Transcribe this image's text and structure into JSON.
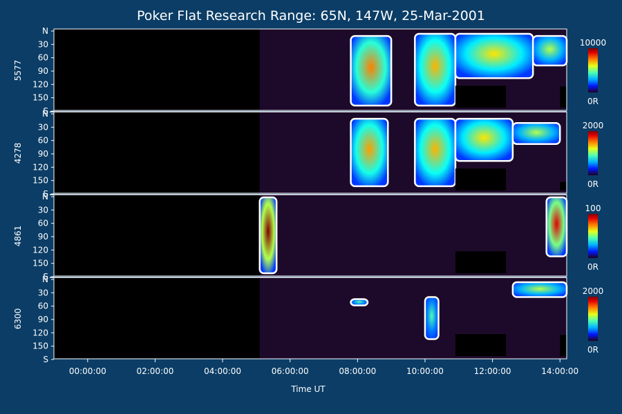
{
  "chart_data": {
    "type": "heatmap",
    "title": "Poker Flat Research Range: 65N, 147W, 25-Mar-2001",
    "xlabel": "Time UT",
    "x_ticks": [
      "00:00:00",
      "02:00:00",
      "04:00:00",
      "06:00:00",
      "08:00:00",
      "10:00:00",
      "12:00:00",
      "14:00:00"
    ],
    "x_tick_hours": [
      0,
      2,
      4,
      6,
      8,
      10,
      12,
      14
    ],
    "xlim_hours": [
      -1.0,
      14.2
    ],
    "y_ticks": [
      "N",
      "30",
      "60",
      "90",
      "120",
      "150",
      "S"
    ],
    "y_tick_values": [
      0,
      30,
      60,
      90,
      120,
      150,
      180
    ],
    "ylim": [
      0,
      180
    ],
    "colorscale_unit": "0R",
    "panels": [
      {
        "name": "5577",
        "cbar_max": "10000",
        "data_start_hour": 5.1,
        "regions": [
          {
            "t0": 7.8,
            "t1": 9.0,
            "y0": 10,
            "y1": 175,
            "level": 0.75
          },
          {
            "t0": 9.7,
            "t1": 10.9,
            "y0": 5,
            "y1": 175,
            "level": 0.7
          },
          {
            "t0": 10.9,
            "t1": 13.2,
            "y0": 5,
            "y1": 110,
            "level": 0.65
          },
          {
            "t0": 13.2,
            "t1": 14.2,
            "y0": 10,
            "y1": 80,
            "level": 0.55
          }
        ],
        "blanks": [
          {
            "t0": 10.9,
            "t1": 12.4,
            "y0": 128,
            "y1": 180
          },
          {
            "t0": 14.0,
            "t1": 14.2,
            "y0": 130,
            "y1": 180
          }
        ]
      },
      {
        "name": "4278",
        "cbar_max": "2000",
        "data_start_hour": 5.1,
        "regions": [
          {
            "t0": 7.8,
            "t1": 8.9,
            "y0": 10,
            "y1": 170,
            "level": 0.72
          },
          {
            "t0": 9.7,
            "t1": 10.9,
            "y0": 10,
            "y1": 170,
            "level": 0.7
          },
          {
            "t0": 10.9,
            "t1": 12.6,
            "y0": 10,
            "y1": 110,
            "level": 0.65
          },
          {
            "t0": 12.6,
            "t1": 14.0,
            "y0": 20,
            "y1": 70,
            "level": 0.55
          }
        ],
        "blanks": [
          {
            "t0": 10.9,
            "t1": 12.4,
            "y0": 128,
            "y1": 180
          },
          {
            "t0": 14.0,
            "t1": 14.2,
            "y0": 160,
            "y1": 180
          }
        ]
      },
      {
        "name": "4861",
        "cbar_max": "100",
        "data_start_hour": 5.1,
        "regions": [
          {
            "t0": 5.1,
            "t1": 5.6,
            "y0": 0,
            "y1": 180,
            "level": 1.0
          },
          {
            "t0": 13.6,
            "t1": 14.2,
            "y0": 0,
            "y1": 140,
            "level": 0.9
          }
        ],
        "blanks": [
          {
            "t0": 10.9,
            "t1": 12.4,
            "y0": 128,
            "y1": 180
          }
        ]
      },
      {
        "name": "6300",
        "cbar_max": "2000",
        "data_start_hour": 5.1,
        "regions": [
          {
            "t0": 7.8,
            "t1": 8.3,
            "y0": 45,
            "y1": 60,
            "level": 0.45
          },
          {
            "t0": 10.0,
            "t1": 10.4,
            "y0": 40,
            "y1": 140,
            "level": 0.45
          },
          {
            "t0": 12.6,
            "t1": 14.2,
            "y0": 5,
            "y1": 40,
            "level": 0.55
          }
        ],
        "blanks": [
          {
            "t0": 10.9,
            "t1": 12.4,
            "y0": 128,
            "y1": 180
          },
          {
            "t0": 14.0,
            "t1": 14.2,
            "y0": 130,
            "y1": 180
          }
        ]
      }
    ]
  },
  "colors": {
    "background": "#0b3d66",
    "plot_bg": "#000000",
    "axis": "#ffffff",
    "night_bg": "#1d0a2a"
  }
}
